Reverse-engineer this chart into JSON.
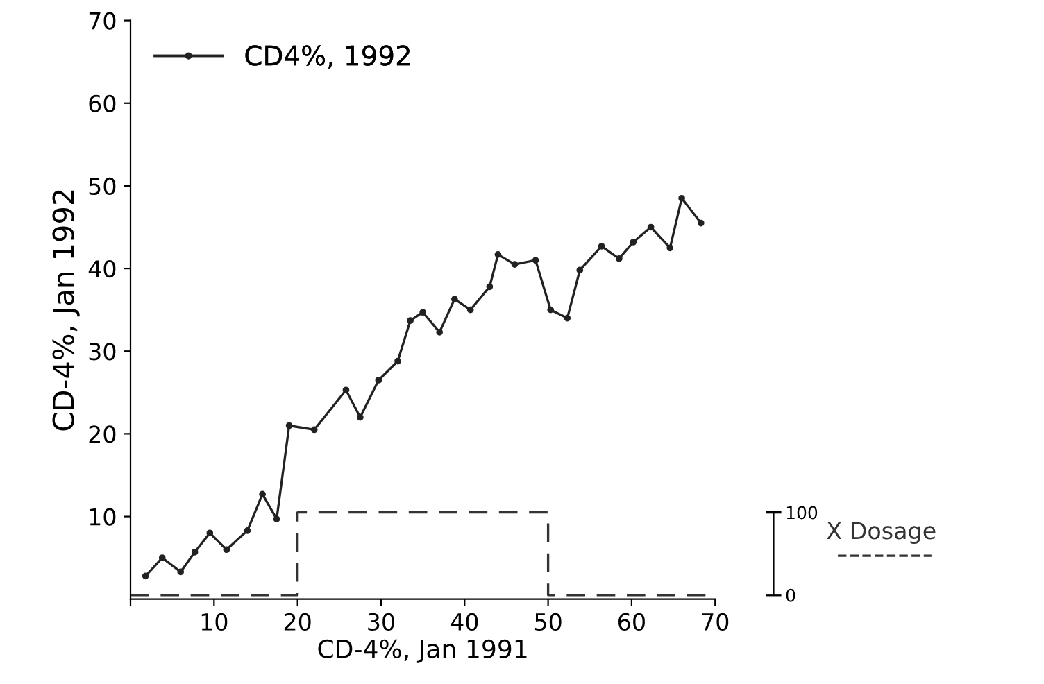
{
  "chart_data": {
    "type": "line",
    "xlabel": "CD-4%, Jan 1991",
    "ylabel": "CD-4%, Jan 1992",
    "xlim": [
      0,
      70
    ],
    "ylim": [
      0,
      70
    ],
    "xticks": [
      {
        "value": 0,
        "label": null
      },
      10,
      20,
      30,
      40,
      50,
      60,
      70
    ],
    "yticks": [
      10,
      20,
      30,
      40,
      50,
      60,
      70
    ],
    "y2lim": [
      -5,
      695
    ],
    "y2ticks": [
      0,
      100
    ],
    "legend": "top left",
    "grid": false,
    "series": [
      {
        "name": "CD4%, 1992",
        "color": "#222222",
        "marker": "circle",
        "line_style": "solid",
        "x": [
          1.8,
          3.8,
          6,
          7.7,
          9.5,
          11.5,
          14,
          15.8,
          17.5,
          19,
          22,
          25.8,
          27.5,
          29.7,
          32,
          33.5,
          35,
          37,
          38.8,
          40.7,
          43,
          44,
          46,
          48.5,
          50.3,
          52.3,
          53.8,
          56.4,
          58.5,
          60.2,
          62.3,
          64.6,
          66,
          68.3
        ],
        "values": [
          2.8,
          5,
          3.3,
          5.7,
          8,
          6,
          8.3,
          12.7,
          9.7,
          21,
          20.5,
          25.3,
          22,
          26.5,
          28.8,
          33.7,
          34.7,
          32.3,
          36.3,
          35,
          37.8,
          41.7,
          40.5,
          41,
          35,
          34,
          39.8,
          42.7,
          41.2,
          43.2,
          45,
          42.5,
          48.5,
          45.5
        ]
      },
      {
        "name": "X Dosage",
        "type": "step",
        "axis": "y2",
        "color": "#333333",
        "marker": "none",
        "line_style": "dashed",
        "x": [
          0,
          20,
          50,
          70
        ],
        "values": [
          0,
          100,
          0,
          0
        ]
      }
    ]
  }
}
